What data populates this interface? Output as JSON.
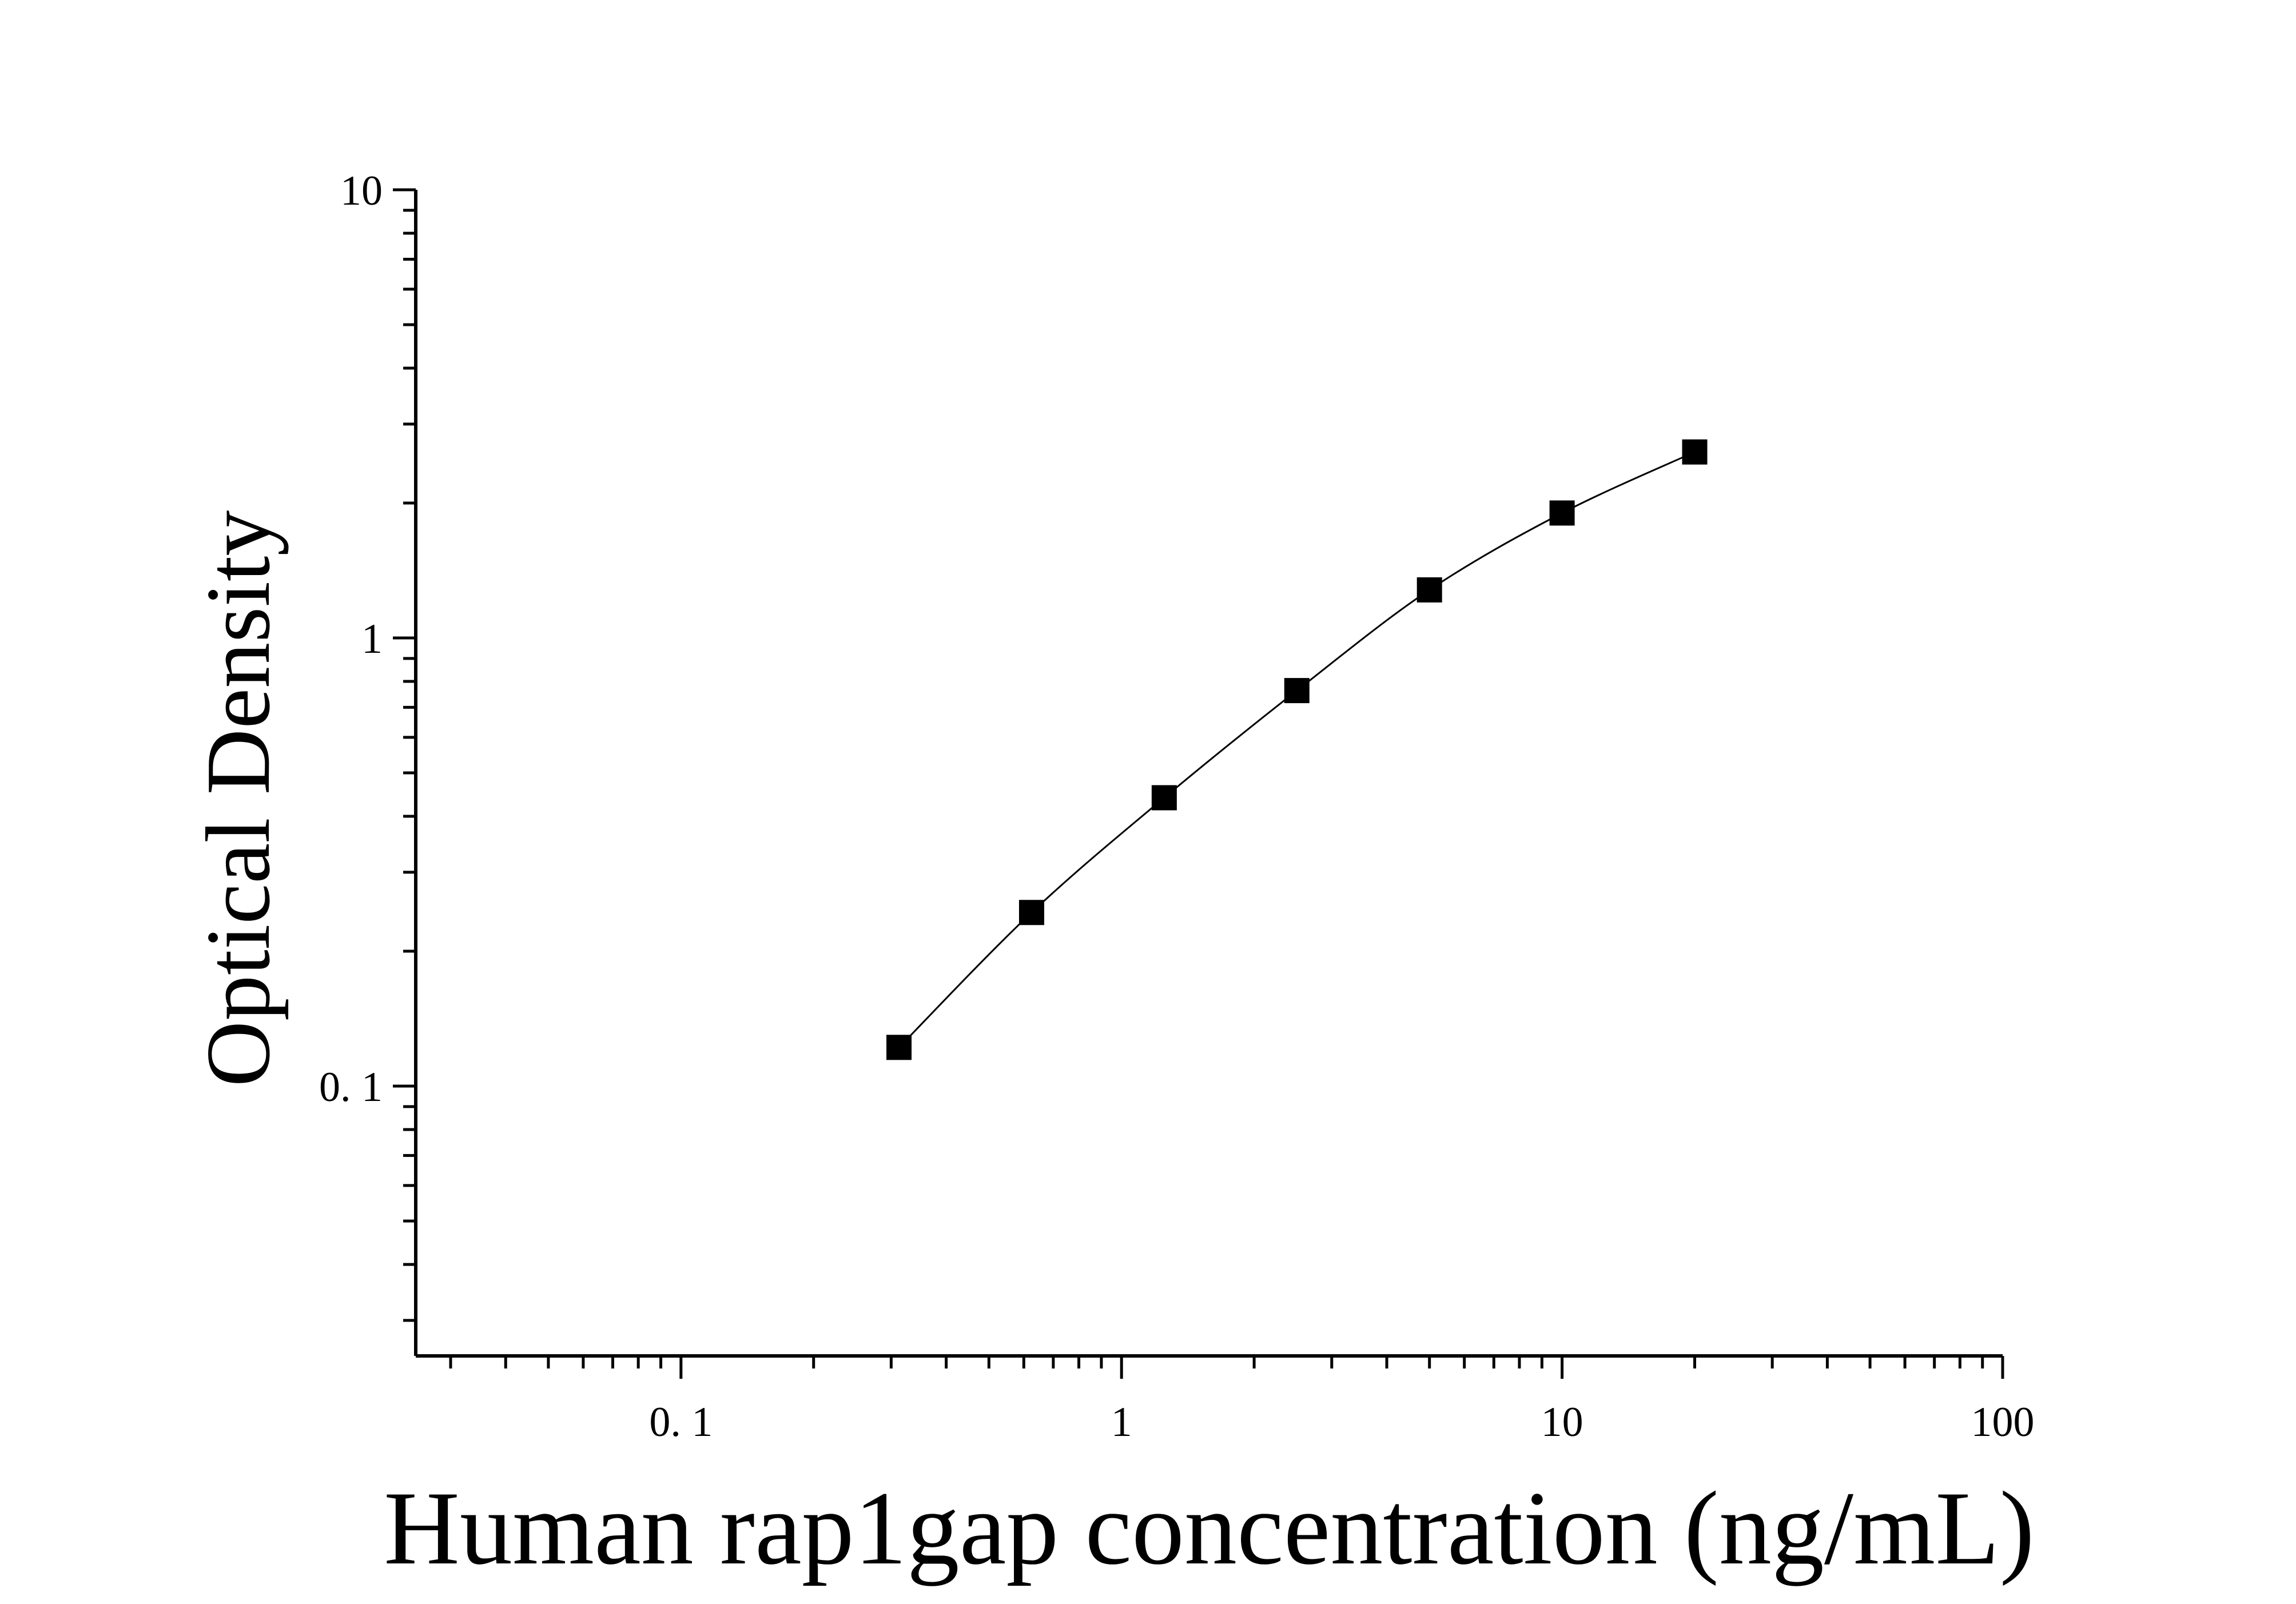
{
  "chart_data": {
    "type": "scatter",
    "title": "",
    "xlabel": "Human rap1gap concentration (ng/mL)",
    "ylabel": "Optical Density",
    "x_scale": "log",
    "y_scale": "log",
    "xlim": [
      0.025,
      100
    ],
    "ylim": [
      0.025,
      10
    ],
    "x_ticks": [
      {
        "value": 0.1,
        "label": "0. 1"
      },
      {
        "value": 1,
        "label": "1"
      },
      {
        "value": 10,
        "label": "10"
      },
      {
        "value": 100,
        "label": "100"
      }
    ],
    "y_ticks": [
      {
        "value": 0.1,
        "label": "0. 1"
      },
      {
        "value": 1,
        "label": "1"
      },
      {
        "value": 10,
        "label": "10"
      }
    ],
    "grid": false,
    "legend": "none",
    "series": [
      {
        "marker": "square",
        "color": "#000000",
        "fit_line": true,
        "x": [
          0.3125,
          0.625,
          1.25,
          2.5,
          5,
          10,
          20
        ],
        "y": [
          0.122,
          0.244,
          0.44,
          0.763,
          1.28,
          1.9,
          2.6
        ]
      }
    ]
  }
}
